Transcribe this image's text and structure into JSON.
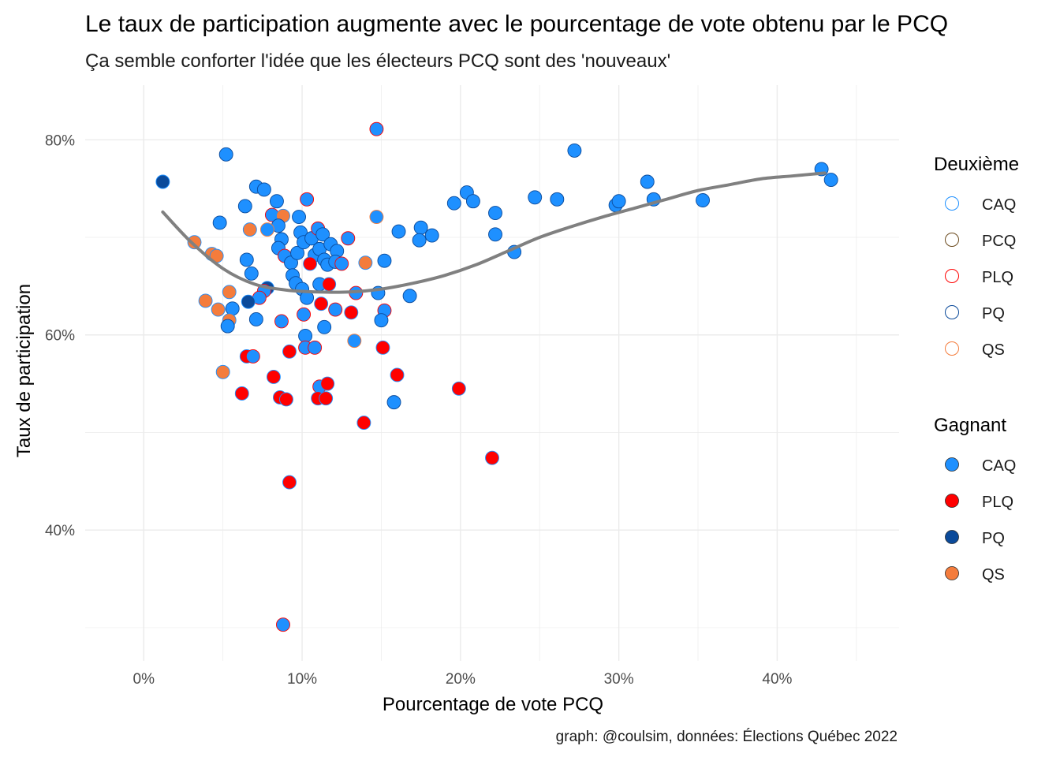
{
  "chart_data": {
    "type": "scatter",
    "title": "Le taux de participation augmente avec le pourcentage de vote obtenu par le PCQ",
    "subtitle": "Ça semble conforter l'idée que les électeurs PCQ sont des 'nouveaux'",
    "xlabel": "Pourcentage de vote PCQ",
    "ylabel": "Taux de participation",
    "caption": "graph: @coulsim, données: Élections Québec 2022",
    "xlim": [
      -0.037,
      0.477
    ],
    "ylim": [
      0.266,
      0.856
    ],
    "x_ticks": [
      {
        "value": 0,
        "label": "0%"
      },
      {
        "value": 0.1,
        "label": "10%"
      },
      {
        "value": 0.2,
        "label": "20%"
      },
      {
        "value": 0.3,
        "label": "30%"
      },
      {
        "value": 0.4,
        "label": "40%"
      }
    ],
    "y_ticks": [
      {
        "value": 0.4,
        "label": "40%"
      },
      {
        "value": 0.6,
        "label": "60%"
      },
      {
        "value": 0.8,
        "label": "80%"
      }
    ],
    "grid": true,
    "colors": {
      "CAQ": "#1E90FF",
      "PCQ": "#6B4A1E",
      "PLQ": "#FF0000",
      "PQ": "#0B4A9A",
      "QS": "#F47C3C",
      "smooth": "#808080"
    },
    "legend_outline": {
      "title": "Deuxième",
      "entries": [
        "CAQ",
        "PCQ",
        "PLQ",
        "PQ",
        "QS"
      ]
    },
    "legend_fill": {
      "title": "Gagnant",
      "entries": [
        "CAQ",
        "PLQ",
        "PQ",
        "QS"
      ]
    },
    "smooth_curve": [
      [
        0.012,
        0.726
      ],
      [
        0.03,
        0.695
      ],
      [
        0.05,
        0.668
      ],
      [
        0.07,
        0.652
      ],
      [
        0.09,
        0.646
      ],
      [
        0.11,
        0.644
      ],
      [
        0.13,
        0.644
      ],
      [
        0.15,
        0.647
      ],
      [
        0.17,
        0.653
      ],
      [
        0.19,
        0.661
      ],
      [
        0.21,
        0.672
      ],
      [
        0.23,
        0.686
      ],
      [
        0.25,
        0.7
      ],
      [
        0.27,
        0.711
      ],
      [
        0.29,
        0.721
      ],
      [
        0.31,
        0.73
      ],
      [
        0.33,
        0.739
      ],
      [
        0.35,
        0.748
      ],
      [
        0.37,
        0.754
      ],
      [
        0.39,
        0.76
      ],
      [
        0.41,
        0.763
      ],
      [
        0.43,
        0.766
      ]
    ],
    "points": [
      {
        "x": 0.012,
        "y": 0.757,
        "winner": "PQ",
        "second": "CAQ"
      },
      {
        "x": 0.052,
        "y": 0.785,
        "winner": "CAQ",
        "second": "PQ"
      },
      {
        "x": 0.048,
        "y": 0.715,
        "winner": "CAQ",
        "second": "PQ"
      },
      {
        "x": 0.064,
        "y": 0.732,
        "winner": "CAQ",
        "second": "PQ"
      },
      {
        "x": 0.071,
        "y": 0.752,
        "winner": "CAQ",
        "second": "PQ"
      },
      {
        "x": 0.076,
        "y": 0.749,
        "winner": "CAQ",
        "second": "PQ"
      },
      {
        "x": 0.084,
        "y": 0.737,
        "winner": "CAQ",
        "second": "PQ"
      },
      {
        "x": 0.081,
        "y": 0.723,
        "winner": "CAQ",
        "second": "PLQ"
      },
      {
        "x": 0.088,
        "y": 0.722,
        "winner": "QS",
        "second": "CAQ"
      },
      {
        "x": 0.085,
        "y": 0.712,
        "winner": "CAQ",
        "second": "PQ"
      },
      {
        "x": 0.078,
        "y": 0.708,
        "winner": "CAQ",
        "second": "QS"
      },
      {
        "x": 0.067,
        "y": 0.708,
        "winner": "QS",
        "second": "CAQ"
      },
      {
        "x": 0.032,
        "y": 0.695,
        "winner": "QS",
        "second": "CAQ"
      },
      {
        "x": 0.043,
        "y": 0.683,
        "winner": "QS",
        "second": "CAQ"
      },
      {
        "x": 0.046,
        "y": 0.681,
        "winner": "QS",
        "second": "CAQ"
      },
      {
        "x": 0.065,
        "y": 0.677,
        "winner": "CAQ",
        "second": "PQ"
      },
      {
        "x": 0.068,
        "y": 0.663,
        "winner": "CAQ",
        "second": "PQ"
      },
      {
        "x": 0.078,
        "y": 0.648,
        "winner": "PQ",
        "second": "CAQ"
      },
      {
        "x": 0.076,
        "y": 0.645,
        "winner": "CAQ",
        "second": "PLQ"
      },
      {
        "x": 0.073,
        "y": 0.638,
        "winner": "CAQ",
        "second": "PLQ"
      },
      {
        "x": 0.066,
        "y": 0.634,
        "winner": "PQ",
        "second": "CAQ"
      },
      {
        "x": 0.054,
        "y": 0.644,
        "winner": "QS",
        "second": "CAQ"
      },
      {
        "x": 0.039,
        "y": 0.635,
        "winner": "QS",
        "second": "CAQ"
      },
      {
        "x": 0.047,
        "y": 0.626,
        "winner": "QS",
        "second": "CAQ"
      },
      {
        "x": 0.056,
        "y": 0.627,
        "winner": "CAQ",
        "second": "PQ"
      },
      {
        "x": 0.054,
        "y": 0.615,
        "winner": "QS",
        "second": "CAQ"
      },
      {
        "x": 0.053,
        "y": 0.609,
        "winner": "CAQ",
        "second": "PQ"
      },
      {
        "x": 0.071,
        "y": 0.616,
        "winner": "CAQ",
        "second": "PQ"
      },
      {
        "x": 0.065,
        "y": 0.578,
        "winner": "PLQ",
        "second": "CAQ"
      },
      {
        "x": 0.069,
        "y": 0.578,
        "winner": "CAQ",
        "second": "PLQ"
      },
      {
        "x": 0.05,
        "y": 0.562,
        "winner": "QS",
        "second": "CAQ"
      },
      {
        "x": 0.062,
        "y": 0.54,
        "winner": "PLQ",
        "second": "CAQ"
      },
      {
        "x": 0.082,
        "y": 0.557,
        "winner": "PLQ",
        "second": "CAQ"
      },
      {
        "x": 0.086,
        "y": 0.536,
        "winner": "PLQ",
        "second": "CAQ"
      },
      {
        "x": 0.09,
        "y": 0.534,
        "winner": "PLQ",
        "second": "CAQ"
      },
      {
        "x": 0.092,
        "y": 0.583,
        "winner": "PLQ",
        "second": "CAQ"
      },
      {
        "x": 0.087,
        "y": 0.614,
        "winner": "CAQ",
        "second": "PLQ"
      },
      {
        "x": 0.092,
        "y": 0.449,
        "winner": "PLQ",
        "second": "CAQ"
      },
      {
        "x": 0.088,
        "y": 0.303,
        "winner": "CAQ",
        "second": "PLQ"
      },
      {
        "x": 0.087,
        "y": 0.698,
        "winner": "CAQ",
        "second": "PQ"
      },
      {
        "x": 0.085,
        "y": 0.689,
        "winner": "CAQ",
        "second": "PQ"
      },
      {
        "x": 0.089,
        "y": 0.681,
        "winner": "CAQ",
        "second": "PLQ"
      },
      {
        "x": 0.093,
        "y": 0.674,
        "winner": "CAQ",
        "second": "PQ"
      },
      {
        "x": 0.094,
        "y": 0.661,
        "winner": "CAQ",
        "second": "PQ"
      },
      {
        "x": 0.096,
        "y": 0.653,
        "winner": "CAQ",
        "second": "PQ"
      },
      {
        "x": 0.097,
        "y": 0.684,
        "winner": "CAQ",
        "second": "PQ"
      },
      {
        "x": 0.098,
        "y": 0.721,
        "winner": "CAQ",
        "second": "PQ"
      },
      {
        "x": 0.099,
        "y": 0.705,
        "winner": "CAQ",
        "second": "PQ"
      },
      {
        "x": 0.101,
        "y": 0.695,
        "winner": "CAQ",
        "second": "PQ"
      },
      {
        "x": 0.1,
        "y": 0.647,
        "winner": "CAQ",
        "second": "PQ"
      },
      {
        "x": 0.103,
        "y": 0.739,
        "winner": "CAQ",
        "second": "PLQ"
      },
      {
        "x": 0.106,
        "y": 0.699,
        "winner": "CAQ",
        "second": "PQ"
      },
      {
        "x": 0.108,
        "y": 0.682,
        "winner": "CAQ",
        "second": "PQ"
      },
      {
        "x": 0.105,
        "y": 0.673,
        "winner": "PLQ",
        "second": "CAQ"
      },
      {
        "x": 0.11,
        "y": 0.709,
        "winner": "CAQ",
        "second": "PLQ"
      },
      {
        "x": 0.113,
        "y": 0.703,
        "winner": "CAQ",
        "second": "PQ"
      },
      {
        "x": 0.111,
        "y": 0.688,
        "winner": "CAQ",
        "second": "PQ"
      },
      {
        "x": 0.114,
        "y": 0.677,
        "winner": "CAQ",
        "second": "PQ"
      },
      {
        "x": 0.116,
        "y": 0.672,
        "winner": "CAQ",
        "second": "PQ"
      },
      {
        "x": 0.118,
        "y": 0.693,
        "winner": "CAQ",
        "second": "PQ"
      },
      {
        "x": 0.122,
        "y": 0.686,
        "winner": "CAQ",
        "second": "PQ"
      },
      {
        "x": 0.121,
        "y": 0.675,
        "winner": "CAQ",
        "second": "PQ"
      },
      {
        "x": 0.125,
        "y": 0.673,
        "winner": "CAQ",
        "second": "PLQ"
      },
      {
        "x": 0.129,
        "y": 0.699,
        "winner": "CAQ",
        "second": "PLQ"
      },
      {
        "x": 0.111,
        "y": 0.652,
        "winner": "CAQ",
        "second": "PQ"
      },
      {
        "x": 0.117,
        "y": 0.652,
        "winner": "PLQ",
        "second": "CAQ"
      },
      {
        "x": 0.103,
        "y": 0.638,
        "winner": "CAQ",
        "second": "PQ"
      },
      {
        "x": 0.112,
        "y": 0.632,
        "winner": "PLQ",
        "second": "CAQ"
      },
      {
        "x": 0.121,
        "y": 0.626,
        "winner": "CAQ",
        "second": "PLQ"
      },
      {
        "x": 0.101,
        "y": 0.621,
        "winner": "CAQ",
        "second": "PLQ"
      },
      {
        "x": 0.114,
        "y": 0.608,
        "winner": "CAQ",
        "second": "PQ"
      },
      {
        "x": 0.102,
        "y": 0.599,
        "winner": "CAQ",
        "second": "PQ"
      },
      {
        "x": 0.102,
        "y": 0.587,
        "winner": "CAQ",
        "second": "PLQ"
      },
      {
        "x": 0.108,
        "y": 0.587,
        "winner": "CAQ",
        "second": "PLQ"
      },
      {
        "x": 0.111,
        "y": 0.547,
        "winner": "CAQ",
        "second": "PLQ"
      },
      {
        "x": 0.116,
        "y": 0.55,
        "winner": "PLQ",
        "second": "CAQ"
      },
      {
        "x": 0.11,
        "y": 0.535,
        "winner": "PLQ",
        "second": "CAQ"
      },
      {
        "x": 0.115,
        "y": 0.535,
        "winner": "PLQ",
        "second": "CAQ"
      },
      {
        "x": 0.131,
        "y": 0.623,
        "winner": "PLQ",
        "second": "CAQ"
      },
      {
        "x": 0.134,
        "y": 0.643,
        "winner": "CAQ",
        "second": "PLQ"
      },
      {
        "x": 0.133,
        "y": 0.594,
        "winner": "CAQ",
        "second": "QS"
      },
      {
        "x": 0.14,
        "y": 0.674,
        "winner": "QS",
        "second": "CAQ"
      },
      {
        "x": 0.139,
        "y": 0.51,
        "winner": "PLQ",
        "second": "CAQ"
      },
      {
        "x": 0.147,
        "y": 0.811,
        "winner": "CAQ",
        "second": "PLQ"
      },
      {
        "x": 0.147,
        "y": 0.721,
        "winner": "CAQ",
        "second": "QS"
      },
      {
        "x": 0.152,
        "y": 0.676,
        "winner": "CAQ",
        "second": "PQ"
      },
      {
        "x": 0.148,
        "y": 0.643,
        "winner": "CAQ",
        "second": "PQ"
      },
      {
        "x": 0.152,
        "y": 0.625,
        "winner": "CAQ",
        "second": "PLQ"
      },
      {
        "x": 0.15,
        "y": 0.615,
        "winner": "CAQ",
        "second": "PQ"
      },
      {
        "x": 0.151,
        "y": 0.587,
        "winner": "PLQ",
        "second": "CAQ"
      },
      {
        "x": 0.161,
        "y": 0.706,
        "winner": "CAQ",
        "second": "PQ"
      },
      {
        "x": 0.16,
        "y": 0.559,
        "winner": "PLQ",
        "second": "CAQ"
      },
      {
        "x": 0.158,
        "y": 0.531,
        "winner": "CAQ",
        "second": "PQ"
      },
      {
        "x": 0.168,
        "y": 0.64,
        "winner": "CAQ",
        "second": "PQ"
      },
      {
        "x": 0.175,
        "y": 0.71,
        "winner": "CAQ",
        "second": "PQ"
      },
      {
        "x": 0.174,
        "y": 0.697,
        "winner": "CAQ",
        "second": "PQ"
      },
      {
        "x": 0.182,
        "y": 0.702,
        "winner": "CAQ",
        "second": "PQ"
      },
      {
        "x": 0.196,
        "y": 0.735,
        "winner": "CAQ",
        "second": "PQ"
      },
      {
        "x": 0.199,
        "y": 0.545,
        "winner": "PLQ",
        "second": "CAQ"
      },
      {
        "x": 0.204,
        "y": 0.746,
        "winner": "CAQ",
        "second": "PQ"
      },
      {
        "x": 0.208,
        "y": 0.737,
        "winner": "CAQ",
        "second": "PQ"
      },
      {
        "x": 0.222,
        "y": 0.725,
        "winner": "CAQ",
        "second": "PQ"
      },
      {
        "x": 0.222,
        "y": 0.703,
        "winner": "CAQ",
        "second": "PQ"
      },
      {
        "x": 0.22,
        "y": 0.474,
        "winner": "PLQ",
        "second": "CAQ"
      },
      {
        "x": 0.234,
        "y": 0.685,
        "winner": "CAQ",
        "second": "PQ"
      },
      {
        "x": 0.247,
        "y": 0.741,
        "winner": "CAQ",
        "second": "PQ"
      },
      {
        "x": 0.261,
        "y": 0.739,
        "winner": "CAQ",
        "second": "PQ"
      },
      {
        "x": 0.272,
        "y": 0.789,
        "winner": "CAQ",
        "second": "PQ"
      },
      {
        "x": 0.298,
        "y": 0.733,
        "winner": "CAQ",
        "second": "PQ"
      },
      {
        "x": 0.3,
        "y": 0.737,
        "winner": "CAQ",
        "second": "PQ"
      },
      {
        "x": 0.318,
        "y": 0.757,
        "winner": "CAQ",
        "second": "PQ"
      },
      {
        "x": 0.322,
        "y": 0.739,
        "winner": "CAQ",
        "second": "PQ"
      },
      {
        "x": 0.353,
        "y": 0.738,
        "winner": "CAQ",
        "second": "PQ"
      },
      {
        "x": 0.428,
        "y": 0.77,
        "winner": "CAQ",
        "second": "PQ"
      },
      {
        "x": 0.434,
        "y": 0.759,
        "winner": "CAQ",
        "second": "PQ"
      }
    ]
  }
}
